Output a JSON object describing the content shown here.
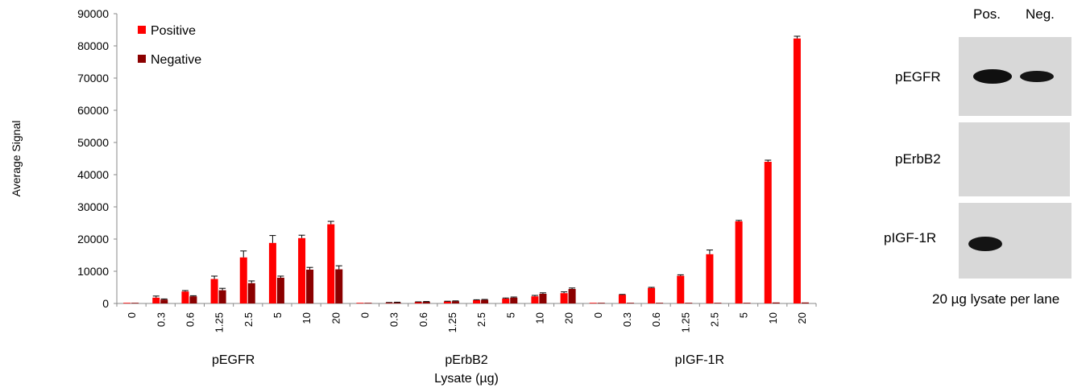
{
  "chart_data": {
    "type": "bar",
    "ylabel": "Average Signal",
    "xlabel": "Lysate (µg)",
    "ylim": [
      0,
      90000
    ],
    "yticks": [
      "0",
      "10000",
      "20000",
      "30000",
      "40000",
      "50000",
      "60000",
      "70000",
      "80000",
      "90000"
    ],
    "legend": {
      "placement": "top-left"
    },
    "series": [
      {
        "name": "Positive",
        "color": "#ff0000"
      },
      {
        "name": "Negative",
        "color": "#8b0000"
      }
    ],
    "groups": [
      {
        "name": "pEGFR",
        "categories": [
          "0",
          "0.3",
          "0.6",
          "1.25",
          "2.5",
          "5",
          "10",
          "20"
        ],
        "positive": [
          0,
          1800,
          3700,
          7600,
          14300,
          18800,
          20300,
          24600
        ],
        "positive_err": [
          0,
          500,
          300,
          900,
          2000,
          2300,
          900,
          900
        ],
        "negative": [
          100,
          1200,
          2200,
          4100,
          6300,
          8000,
          10500,
          10600
        ],
        "negative_err": [
          0,
          200,
          200,
          600,
          700,
          500,
          700,
          1100
        ]
      },
      {
        "name": "pErbB2",
        "categories": [
          "0",
          "0.3",
          "0.6",
          "1.25",
          "2.5",
          "5",
          "10",
          "20"
        ],
        "positive": [
          0,
          200,
          400,
          600,
          1000,
          1500,
          2200,
          3200
        ],
        "positive_err": [
          0,
          100,
          100,
          100,
          150,
          200,
          300,
          400
        ],
        "negative": [
          100,
          300,
          500,
          700,
          1100,
          1800,
          3000,
          4500
        ],
        "negative_err": [
          0,
          100,
          100,
          100,
          150,
          200,
          300,
          300
        ]
      },
      {
        "name": "pIGF-1R",
        "categories": [
          "0",
          "0.3",
          "0.6",
          "1.25",
          "2.5",
          "5",
          "10",
          "20"
        ],
        "positive": [
          0,
          2700,
          4800,
          8600,
          15300,
          25500,
          44000,
          82300
        ],
        "positive_err": [
          0,
          100,
          200,
          300,
          1300,
          300,
          500,
          700
        ],
        "negative": [
          100,
          100,
          100,
          100,
          100,
          100,
          300,
          300
        ],
        "negative_err": [
          0,
          0,
          0,
          0,
          0,
          0,
          0,
          0
        ]
      }
    ]
  },
  "blot": {
    "lane_headers": [
      "Pos.",
      "Neg."
    ],
    "rows": [
      {
        "label": "pEGFR",
        "bands": [
          1,
          0.85
        ]
      },
      {
        "label": "pErbB2",
        "bands": [
          0,
          0
        ]
      },
      {
        "label": "pIGF-1R",
        "bands": [
          0.9,
          0
        ]
      }
    ],
    "caption": "20 µg lysate per lane"
  }
}
